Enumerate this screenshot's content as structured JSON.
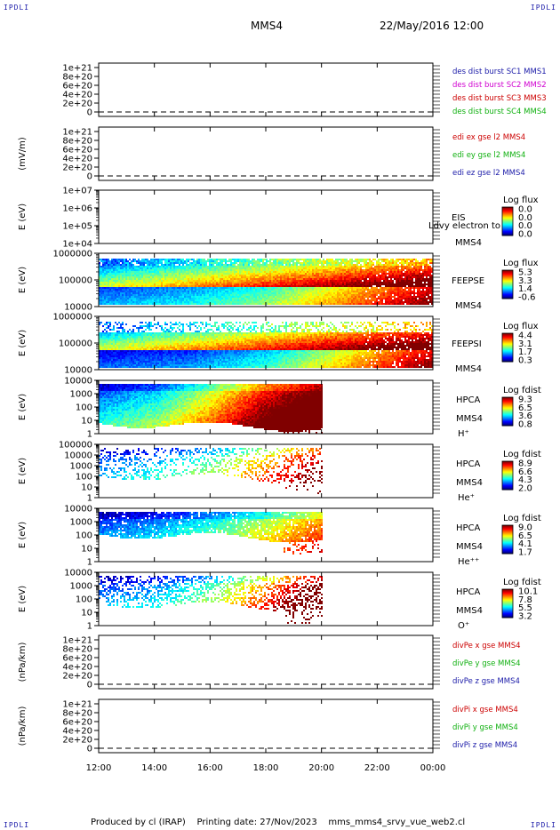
{
  "corner_label": "IPDLI",
  "header": {
    "spacecraft": "MMS4",
    "date": "22/May/2016 12:00"
  },
  "footer": {
    "produced_by": "Produced by cl (IRAP)",
    "printing_date": "Printing date: 27/Nov/2023",
    "script": "mms_mms4_srvy_vue_web2.cl"
  },
  "chart_data": {
    "type": "heatmap",
    "x_range_hours": [
      12,
      24
    ],
    "x_ticks": [
      "12:00",
      "14:00",
      "16:00",
      "18:00",
      "20:00",
      "22:00",
      "00:00"
    ],
    "panels": [
      {
        "kind": "line",
        "ylabel": "",
        "yticks": [
          "1e+21",
          "8e+20",
          "6e+20",
          "4e+20",
          "2e+20",
          "0"
        ],
        "legend": [
          {
            "label": "des dist burst SC1 MMS1",
            "color": "#1a1aa8"
          },
          {
            "label": "des dist burst SC2 MMS2",
            "color": "#d000d0"
          },
          {
            "label": "des dist burst SC3 MMS3",
            "color": "#cc0000"
          },
          {
            "label": "des dist burst SC4 MMS4",
            "color": "#10b010"
          }
        ]
      },
      {
        "kind": "line",
        "ylabel": "(mV/m)",
        "yticks": [
          "1e+21",
          "8e+20",
          "6e+20",
          "4e+20",
          "2e+20",
          "0"
        ],
        "legend": [
          {
            "label": "edi ex gse l2 MMS4",
            "color": "#cc0000"
          },
          {
            "label": "edi ey gse l2 MMS4",
            "color": "#10b010"
          },
          {
            "label": "edi ez gse l2 MMS4",
            "color": "#1a1aa8"
          }
        ]
      },
      {
        "kind": "spec",
        "ylabel": "E (eV)",
        "yticks": [
          "1e+07",
          "1e+06",
          "1e+05",
          "1e+04"
        ],
        "instrument": [
          "EIS",
          "MMS4"
        ],
        "overlay_text": "Ldvy electron to",
        "cbar_title": "Log flux",
        "cbar_ticks": [
          "0.0",
          "0.0",
          "0.0",
          "0.0"
        ],
        "data": null
      },
      {
        "kind": "spec",
        "ylabel": "E (eV)",
        "yticks": [
          "1000000",
          "100000",
          "10000"
        ],
        "instrument": [
          "FEEPSE",
          "MMS4"
        ],
        "cbar_title": "Log flux",
        "cbar_ticks": [
          "5.3",
          "3.3",
          "1.4",
          "-0.6"
        ],
        "data": {
          "end": 24.0,
          "low_start": 0.4,
          "low_end": 0.78,
          "low_level": [
            0.12,
            0.2,
            0.35,
            0.6,
            0.85
          ],
          "top_band": true,
          "stripes": true
        }
      },
      {
        "kind": "spec",
        "ylabel": "E (eV)",
        "yticks": [
          "1000000",
          "100000",
          "10000"
        ],
        "instrument": [
          "FEEPSI",
          "MMS4"
        ],
        "cbar_title": "Log flux",
        "cbar_ticks": [
          "4.4",
          "3.1",
          "1.7",
          "0.3"
        ],
        "data": {
          "end": 24.0,
          "low_start": 0.25,
          "low_end": 0.7,
          "low_level": [
            0.05,
            0.1,
            0.25,
            0.55,
            0.85
          ],
          "top_band": false,
          "stripes": true
        }
      },
      {
        "kind": "spec",
        "ylabel": "E (eV)",
        "yticks": [
          "10000",
          "1000",
          "100",
          "10",
          "1"
        ],
        "instrument": [
          "HPCA",
          "MMS4",
          "H⁺"
        ],
        "cbar_title": "Log fdist",
        "cbar_ticks": [
          "9.3",
          "6.5",
          "3.6",
          "0.8"
        ],
        "data": {
          "end": 20.0,
          "top_gap": 0.05,
          "coverage": 0.78,
          "density": 1.0,
          "levels": [
            0.08,
            0.2,
            0.45,
            0.75,
            0.95
          ],
          "sparse": false
        }
      },
      {
        "kind": "spec",
        "ylabel": "E (eV)",
        "yticks": [
          "100000",
          "10000",
          "1000",
          "100",
          "10",
          "1"
        ],
        "instrument": [
          "HPCA",
          "MMS4",
          "He⁺"
        ],
        "cbar_title": "Log fdist",
        "cbar_ticks": [
          "8.9",
          "6.6",
          "4.3",
          "2.0"
        ],
        "data": {
          "end": 20.0,
          "top_gap": 0.05,
          "coverage": 0.55,
          "density": 0.35,
          "levels": [
            0.05,
            0.15,
            0.3,
            0.55,
            0.8
          ],
          "sparse": true
        }
      },
      {
        "kind": "spec",
        "ylabel": "E (eV)",
        "yticks": [
          "10000",
          "1000",
          "100",
          "10",
          "1"
        ],
        "instrument": [
          "HPCA",
          "MMS4",
          "He⁺⁺"
        ],
        "cbar_title": "Log fdist",
        "cbar_ticks": [
          "9.0",
          "6.5",
          "4.1",
          "1.7"
        ],
        "data": {
          "end": 20.0,
          "top_gap": 0.04,
          "coverage": 0.45,
          "density": 0.9,
          "levels": [
            0.05,
            0.12,
            0.25,
            0.4,
            0.6
          ],
          "sparse": false
        }
      },
      {
        "kind": "spec",
        "ylabel": "E (eV)",
        "yticks": [
          "10000",
          "1000",
          "100",
          "10",
          "1"
        ],
        "instrument": [
          "HPCA",
          "MMS4",
          "O⁺"
        ],
        "cbar_title": "Log fdist",
        "cbar_ticks": [
          "10.1",
          "7.8",
          "5.5",
          "3.2"
        ],
        "data": {
          "end": 20.0,
          "top_gap": 0.05,
          "coverage": 0.55,
          "density": 0.45,
          "levels": [
            0.05,
            0.12,
            0.3,
            0.6,
            0.95
          ],
          "sparse": true
        }
      },
      {
        "kind": "line",
        "ylabel": "(nPa/km)",
        "yticks": [
          "1e+21",
          "8e+20",
          "6e+20",
          "4e+20",
          "2e+20",
          "0"
        ],
        "legend": [
          {
            "label": "divPe x gse MMS4",
            "color": "#cc0000"
          },
          {
            "label": "divPe y gse MMS4",
            "color": "#10b010"
          },
          {
            "label": "divPe z gse MMS4",
            "color": "#1a1aa8"
          }
        ]
      },
      {
        "kind": "line",
        "ylabel": "(nPa/km)",
        "yticks": [
          "1e+21",
          "8e+20",
          "6e+20",
          "4e+20",
          "2e+20",
          "0"
        ],
        "legend": [
          {
            "label": "divPi x gse MMS4",
            "color": "#cc0000"
          },
          {
            "label": "divPi y gse MMS4",
            "color": "#10b010"
          },
          {
            "label": "divPi z gse MMS4",
            "color": "#1a1aa8"
          }
        ]
      }
    ]
  }
}
